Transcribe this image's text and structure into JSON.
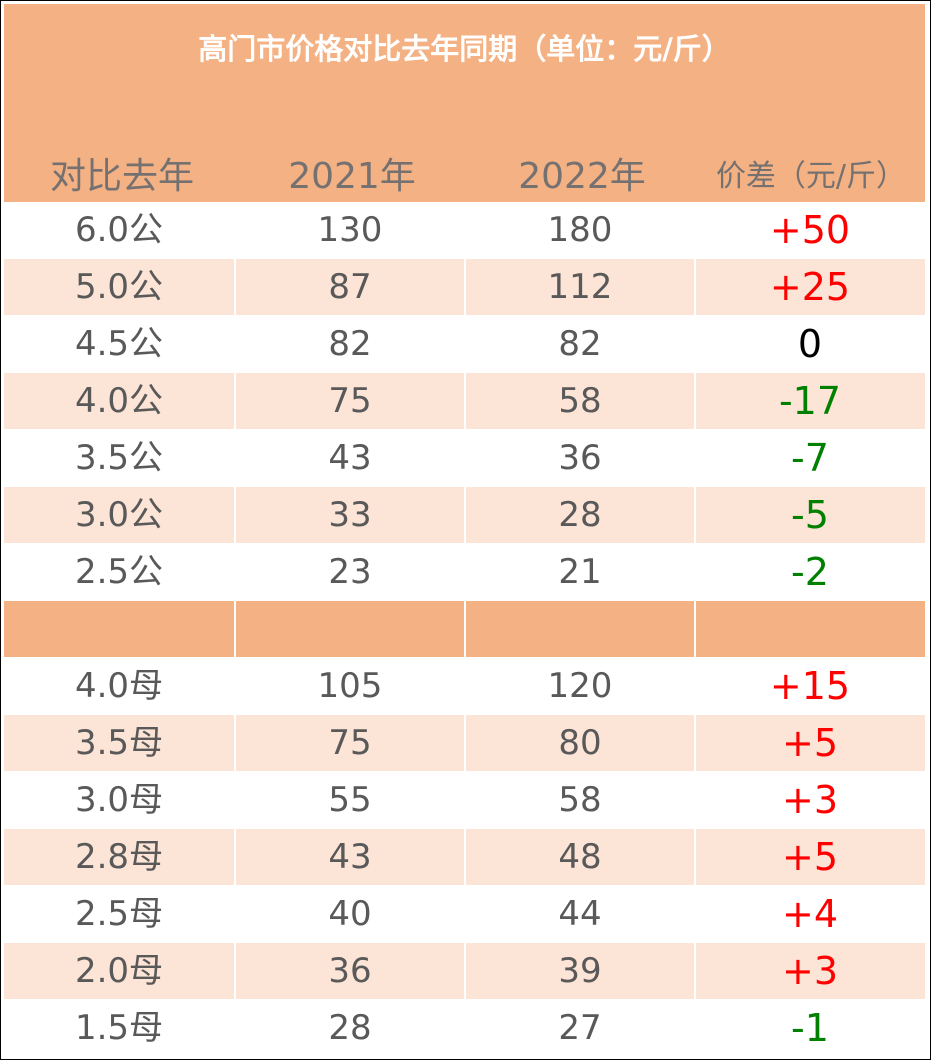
{
  "chart_data": {
    "type": "table",
    "title": "高门市价格对比去年同期（单位：元/斤）",
    "columns": [
      "对比去年",
      "2021年",
      "2022年",
      "价差（元/斤）"
    ],
    "groups": [
      {
        "rows": [
          [
            "6.0公",
            "130",
            "180",
            "+50"
          ],
          [
            "5.0公",
            "87",
            "112",
            "+25"
          ],
          [
            "4.5公",
            "82",
            "82",
            "0"
          ],
          [
            "4.0公",
            "75",
            "58",
            "-17"
          ],
          [
            "3.5公",
            "43",
            "36",
            "-7"
          ],
          [
            "3.0公",
            "33",
            "28",
            "-5"
          ],
          [
            "2.5公",
            "23",
            "21",
            "-2"
          ]
        ]
      },
      {
        "rows": [
          [
            "4.0母",
            "105",
            "120",
            "+15"
          ],
          [
            "3.5母",
            "75",
            "80",
            "+5"
          ],
          [
            "3.0母",
            "55",
            "58",
            "+3"
          ],
          [
            "2.8母",
            "43",
            "48",
            "+5"
          ],
          [
            "2.5母",
            "40",
            "44",
            "+4"
          ],
          [
            "2.0母",
            "36",
            "39",
            "+3"
          ],
          [
            "1.5母",
            "28",
            "27",
            "-1"
          ]
        ]
      }
    ],
    "colors": {
      "header_bg": "#f4b183",
      "band_bg": "#fce4d6",
      "positive": "#ff0000",
      "negative": "#008000",
      "zero": "#000000"
    }
  }
}
